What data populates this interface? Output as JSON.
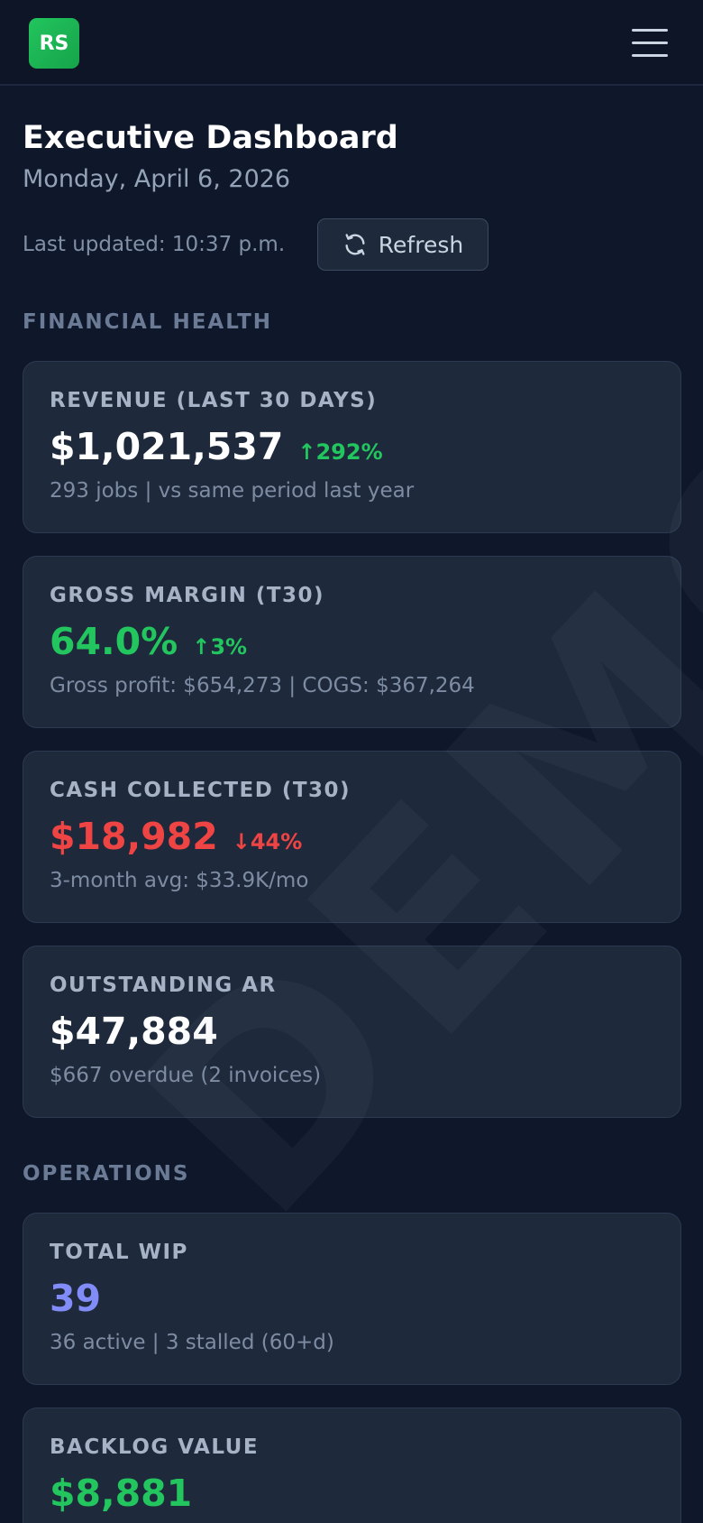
{
  "app": {
    "logo_text": "RS"
  },
  "header": {
    "title": "Executive Dashboard",
    "date": "Monday, April 6, 2026",
    "last_updated": "Last updated: 10:37 p.m.",
    "refresh_label": "Refresh"
  },
  "watermark": "DEMO",
  "sections": {
    "financial": "FINANCIAL HEALTH",
    "operations": "OPERATIONS"
  },
  "cards": {
    "revenue": {
      "label": "REVENUE (LAST 30 DAYS)",
      "value": "$1,021,537",
      "change": "↑292%",
      "sub": "293 jobs | vs same period last year"
    },
    "margin": {
      "label": "GROSS MARGIN (T30)",
      "value": "64.0%",
      "change": "↑3%",
      "sub": "Gross profit: $654,273 | COGS: $367,264"
    },
    "cash": {
      "label": "CASH COLLECTED (T30)",
      "value": "$18,982",
      "change": "↓44%",
      "sub": "3-month avg: $33.9K/mo"
    },
    "ar": {
      "label": "OUTSTANDING AR",
      "value": "$47,884",
      "sub": "$667 overdue (2 invoices)"
    },
    "wip": {
      "label": "TOTAL WIP",
      "value": "39",
      "sub": "36 active | 3 stalled (60+d)"
    },
    "backlog": {
      "label": "BACKLOG VALUE",
      "value": "$8,881"
    }
  },
  "colors": {
    "background": "#0f172a",
    "card": "#1e293b",
    "positive": "#22c55e",
    "negative": "#ef4444",
    "accent": "#818cf8"
  },
  "icons": [
    "menu-icon",
    "refresh-icon"
  ]
}
